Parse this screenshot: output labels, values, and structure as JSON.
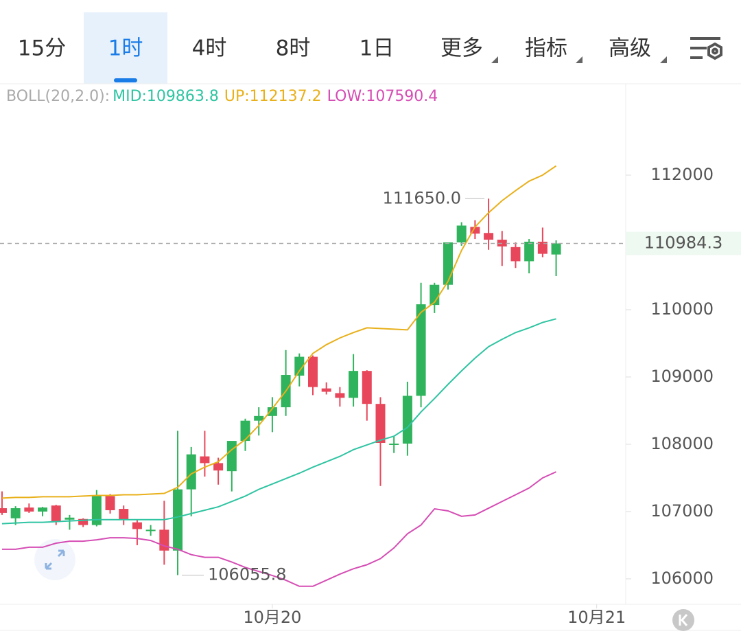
{
  "tabs": [
    "15分",
    "1时",
    "4时",
    "8时",
    "1日",
    "更多",
    "指标",
    "高级"
  ],
  "chart_data": {
    "type": "candlestick",
    "indicator": "BOLL(20,2.0):",
    "up_color": "#2fb35c",
    "down_color": "#e8475b",
    "open": [
      107050,
      106900,
      107060,
      107000,
      107090,
      106880,
      106890,
      106800,
      107230,
      107040,
      106840,
      106720,
      106730,
      106420,
      107330,
      107820,
      107720,
      107600,
      108050,
      108350,
      108420,
      108550,
      109020,
      109300,
      108830,
      108760,
      108690,
      109090,
      108600,
      107990,
      108010,
      108720,
      110070,
      110370,
      111000,
      111230,
      111140,
      111040,
      110930,
      110720,
      111010,
      110820
    ],
    "high": [
      107300,
      107080,
      107120,
      107070,
      107100,
      106950,
      106900,
      107320,
      107260,
      107090,
      106880,
      106800,
      107160,
      108200,
      107960,
      108200,
      107800,
      108030,
      108380,
      108550,
      108700,
      109400,
      109350,
      109320,
      108920,
      108850,
      109340,
      109100,
      108700,
      108120,
      108930,
      110400,
      110400,
      111000,
      111300,
      111330,
      111650,
      111170,
      111000,
      111050,
      111220,
      111030
    ],
    "low": [
      106950,
      106800,
      106980,
      106930,
      106800,
      106730,
      106770,
      106780,
      106970,
      106800,
      106500,
      106640,
      106210,
      106055.8,
      106930,
      107520,
      107400,
      107300,
      107900,
      108130,
      108180,
      108420,
      108860,
      108730,
      108740,
      108560,
      108560,
      108350,
      107380,
      107870,
      107830,
      108550,
      109950,
      110300,
      110950,
      111050,
      110890,
      110650,
      110620,
      110540,
      110780,
      110500
    ],
    "close": [
      106980,
      107050,
      107000,
      107060,
      106850,
      106910,
      106800,
      107230,
      107020,
      106880,
      106740,
      106730,
      106420,
      107330,
      107850,
      107720,
      107610,
      108050,
      108350,
      108420,
      108550,
      109030,
      109300,
      108850,
      108780,
      108690,
      109090,
      108600,
      108020,
      108010,
      108720,
      110080,
      110370,
      111000,
      111250,
      111130,
      111040,
      110940,
      110720,
      111010,
      110830,
      110984.3
    ],
    "bands": [
      {
        "label": "MID:109863.8",
        "color": "#2fc4a2",
        "values": [
          106820,
          106830,
          106840,
          106840,
          106850,
          106860,
          106870,
          106880,
          106880,
          106880,
          106880,
          106880,
          106880,
          106920,
          106970,
          107020,
          107070,
          107150,
          107230,
          107330,
          107410,
          107490,
          107570,
          107660,
          107740,
          107820,
          107920,
          107990,
          108060,
          108120,
          108250,
          108480,
          108680,
          108890,
          109090,
          109280,
          109450,
          109560,
          109660,
          109730,
          109810,
          109863.8
        ]
      },
      {
        "label": "UP:112137.2",
        "color": "#e8b01a",
        "values": [
          107200,
          107210,
          107210,
          107220,
          107220,
          107220,
          107230,
          107240,
          107240,
          107250,
          107250,
          107260,
          107270,
          107360,
          107560,
          107660,
          107740,
          107920,
          108070,
          108280,
          108530,
          108790,
          109090,
          109350,
          109480,
          109580,
          109660,
          109730,
          109720,
          109710,
          109700,
          109960,
          110110,
          110420,
          110880,
          111230,
          111440,
          111620,
          111770,
          111910,
          112000,
          112137.2
        ]
      },
      {
        "label": "LOW:107590.4",
        "color": "#d54db4",
        "values": [
          106440,
          106440,
          106470,
          106470,
          106530,
          106560,
          106560,
          106580,
          106610,
          106610,
          106600,
          106570,
          106490,
          106440,
          106360,
          106320,
          106320,
          106250,
          106170,
          106110,
          106050,
          105980,
          105890,
          105890,
          105980,
          106070,
          106150,
          106210,
          106300,
          106460,
          106670,
          106800,
          107040,
          107010,
          106930,
          106950,
          107050,
          107150,
          107250,
          107350,
          107500,
          107590.4
        ]
      }
    ],
    "xlim": [
      -0.15,
      46.15
    ],
    "xticks": [
      {
        "value": 20,
        "label": "10月20"
      },
      {
        "value": 44,
        "label": "10月21"
      }
    ],
    "ylim": [
      105622,
      113357
    ],
    "yticks": [
      106000,
      107000,
      108000,
      109000,
      110000,
      111000,
      112000
    ],
    "last_price": 110984.3,
    "annotations": [
      {
        "value": 111650,
        "label": "111650.0"
      },
      106055.8
    ]
  }
}
